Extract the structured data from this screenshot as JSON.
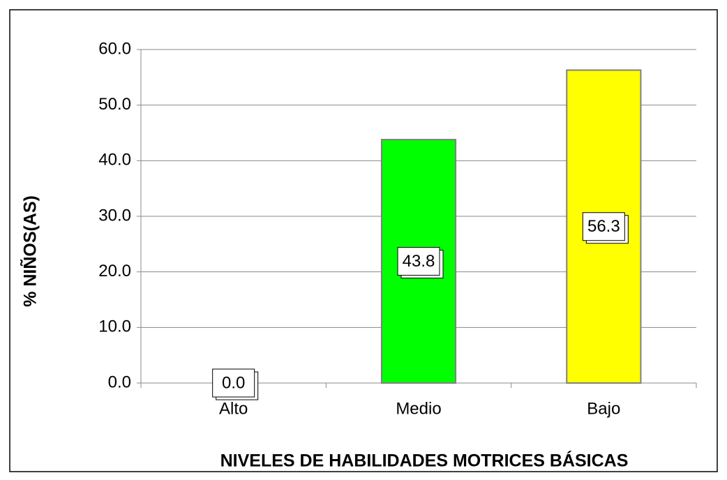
{
  "chart_data": {
    "type": "bar",
    "x_label": "NIVELES DE HABILIDADES MOTRICES BÁSICAS",
    "y_label": "% NIÑOS(AS)",
    "categories": [
      "Alto",
      "Medio",
      "Bajo"
    ],
    "values": [
      0,
      43.8,
      56.3
    ],
    "value_labels": [
      "0.0",
      "43.8",
      "56.3"
    ],
    "colors": [
      "#000080",
      "#00ff00",
      "#ffff00"
    ],
    "ylim": [
      0,
      60
    ],
    "yticks": [
      {
        "value": 0,
        "label": "0.0"
      },
      {
        "value": 10,
        "label": "10.0"
      },
      {
        "value": 20,
        "label": "20.0"
      },
      {
        "value": 30,
        "label": "30.0"
      },
      {
        "value": 40,
        "label": "40.0"
      },
      {
        "value": 50,
        "label": "50.0"
      },
      {
        "value": 60,
        "label": "60.0"
      }
    ],
    "grid": true
  }
}
